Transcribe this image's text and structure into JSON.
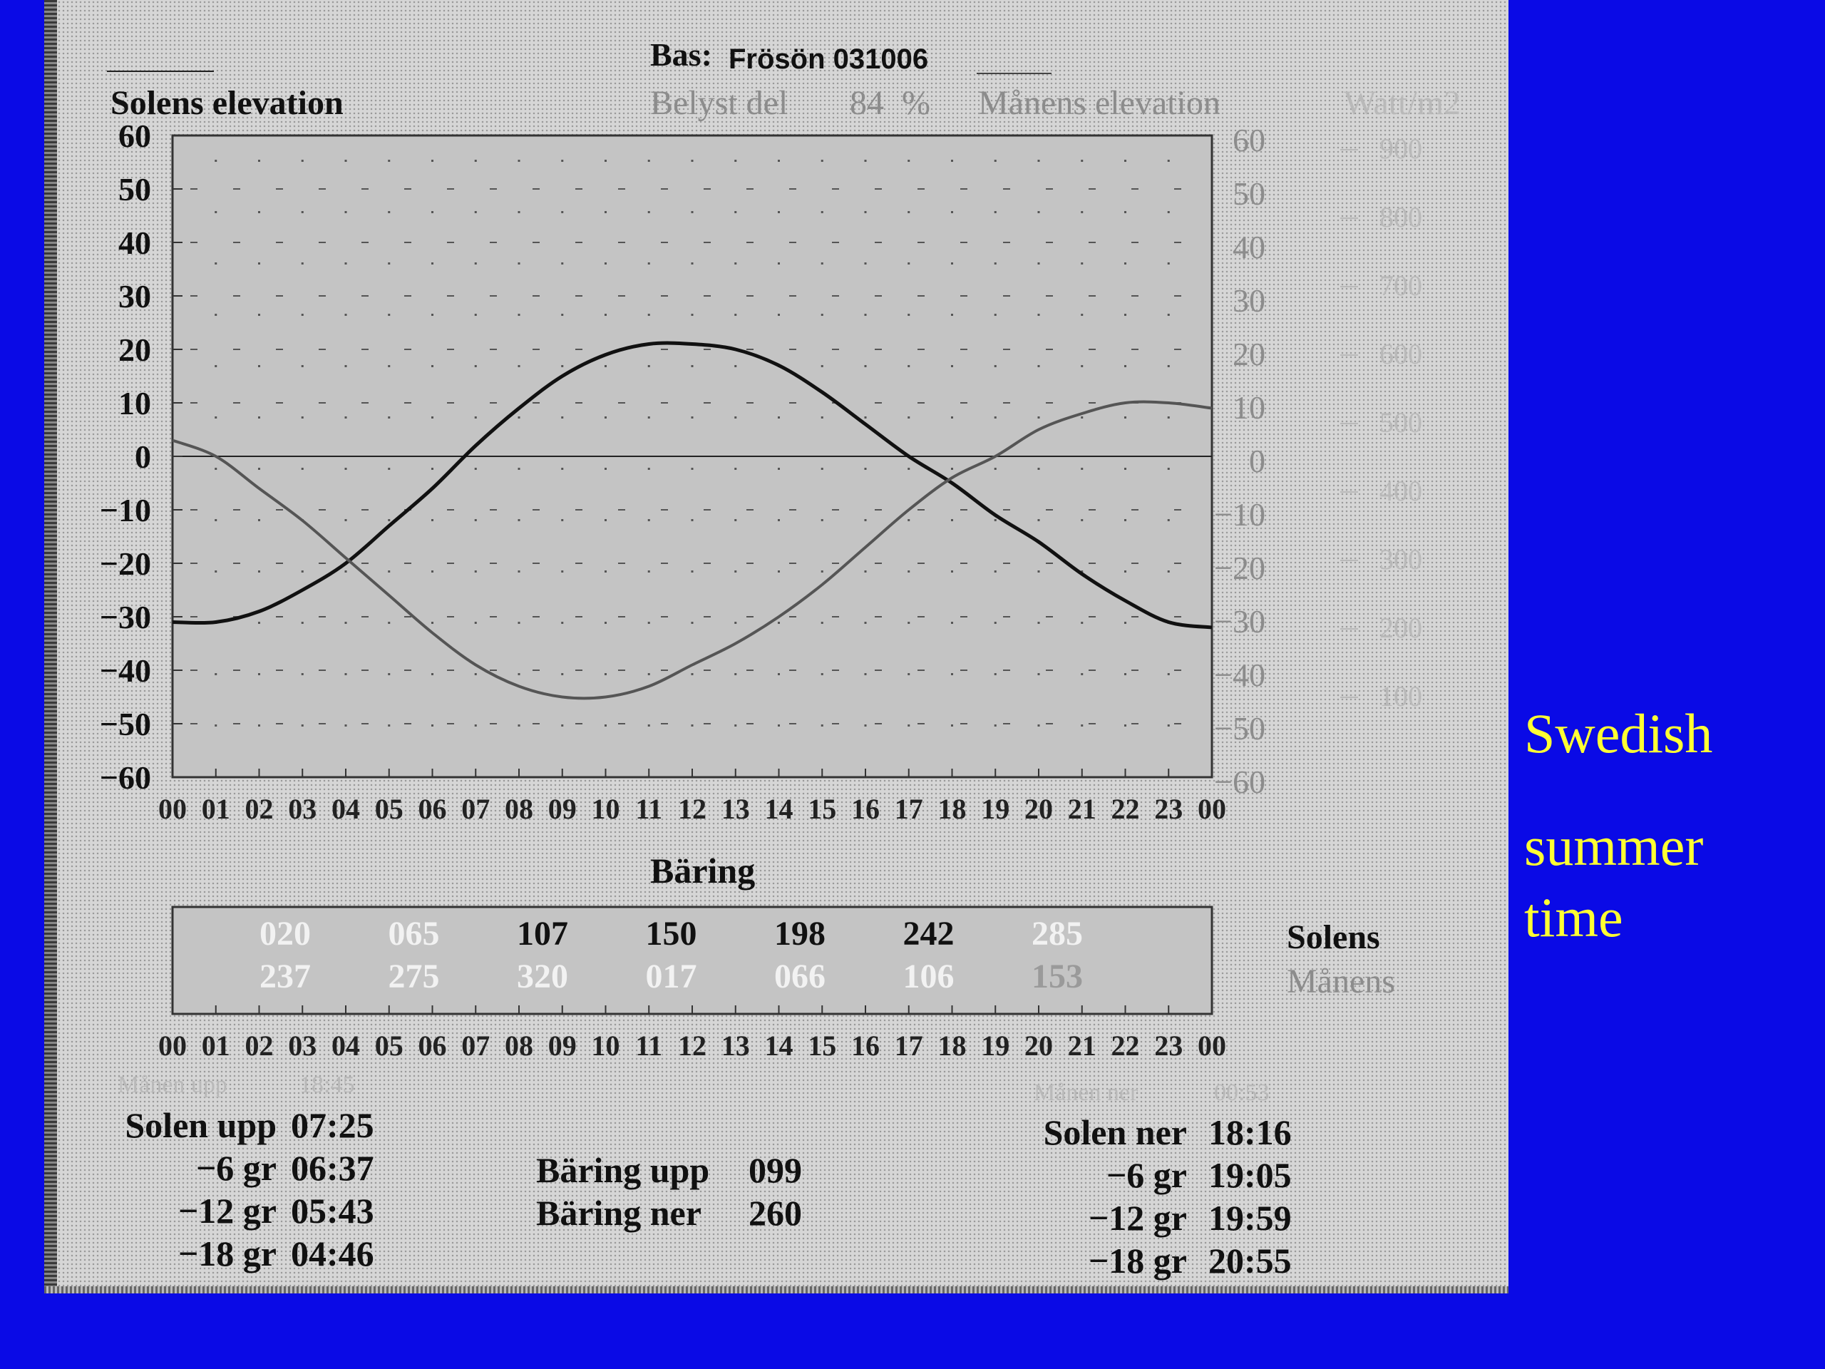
{
  "header": {
    "bas_label": "Bas:",
    "bas_value": "Frösön 031006",
    "belyst_label": "Belyst del",
    "belyst_value": "84",
    "belyst_unit": "%"
  },
  "left_axis_title": "Solens elevation",
  "right_axis_title": "Månens elevation",
  "far_right_title": "Watt/m2",
  "far_right_ticks": [
    "900",
    "800",
    "700",
    "600",
    "500",
    "400",
    "300",
    "200",
    "100"
  ],
  "bearing": {
    "title": "Bäring",
    "sun_label": "Solens",
    "moon_label": "Månens",
    "sun_values": [
      "020",
      "065",
      "107",
      "150",
      "198",
      "242",
      "285"
    ],
    "moon_values": [
      "237",
      "275",
      "320",
      "017",
      "066",
      "106",
      "153"
    ]
  },
  "bottom": {
    "moon_rise_label": "Månen upp",
    "moon_rise_time": "18:45",
    "moon_set_label": "Månen ner",
    "moon_set_time": "00:53",
    "sun_rise_label": "Solen upp",
    "sun_rise_time": "07:25",
    "rise_minus6_label": "−6 gr",
    "rise_minus6_time": "06:37",
    "rise_minus12_label": "−12 gr",
    "rise_minus12_time": "05:43",
    "rise_minus18_label": "−18 gr",
    "rise_minus18_time": "04:46",
    "bearing_rise_label": "Bäring upp",
    "bearing_rise_value": "099",
    "bearing_set_label": "Bäring ner",
    "bearing_set_value": "260",
    "sun_set_label": "Solen ner",
    "sun_set_time": "18:16",
    "set_minus6_label": "−6 gr",
    "set_minus6_time": "19:05",
    "set_minus12_label": "−12 gr",
    "set_minus12_time": "19:59",
    "set_minus18_label": "−18 gr",
    "set_minus18_time": "20:55"
  },
  "side_note": {
    "line1": "Swedish",
    "line2": "summer",
    "line3": "time"
  },
  "colors": {
    "background": "#0a0ae6",
    "note": "#ffff33",
    "plot_bg": "#c4c4c4",
    "sun_line": "#111111",
    "moon_line": "#555555"
  },
  "chart_data": {
    "type": "line",
    "xlabel": "",
    "ylabel": "Solens elevation",
    "y2label": "Månens elevation",
    "x": [
      0,
      1,
      2,
      3,
      4,
      5,
      6,
      7,
      8,
      9,
      10,
      11,
      12,
      13,
      14,
      15,
      16,
      17,
      18,
      19,
      20,
      21,
      22,
      23,
      24
    ],
    "x_tick_labels": [
      "00",
      "01",
      "02",
      "03",
      "04",
      "05",
      "06",
      "07",
      "08",
      "09",
      "10",
      "11",
      "12",
      "13",
      "14",
      "15",
      "16",
      "17",
      "18",
      "19",
      "20",
      "21",
      "22",
      "23",
      "00"
    ],
    "y_ticks": [
      "60",
      "50",
      "40",
      "30",
      "20",
      "10",
      "0",
      "−10",
      "−20",
      "−30",
      "−40",
      "−50",
      "−60"
    ],
    "ylim": [
      -60,
      60
    ],
    "xlim": [
      0,
      24
    ],
    "grid": "dotted",
    "series": [
      {
        "values": [
          -31,
          -31,
          -29,
          -25,
          -20,
          -13,
          -6,
          2,
          9,
          15,
          19,
          21,
          21,
          20,
          17,
          12,
          6,
          0,
          -5,
          -11,
          -16,
          -22,
          -27,
          -31,
          -32
        ]
      },
      {
        "values": [
          3,
          0,
          -6,
          -12,
          -19,
          -26,
          -33,
          -39,
          -43,
          -45,
          -45,
          -43,
          -39,
          -35,
          -30,
          -24,
          -17,
          -10,
          -4,
          0,
          5,
          8,
          10,
          10,
          9
        ]
      }
    ]
  }
}
